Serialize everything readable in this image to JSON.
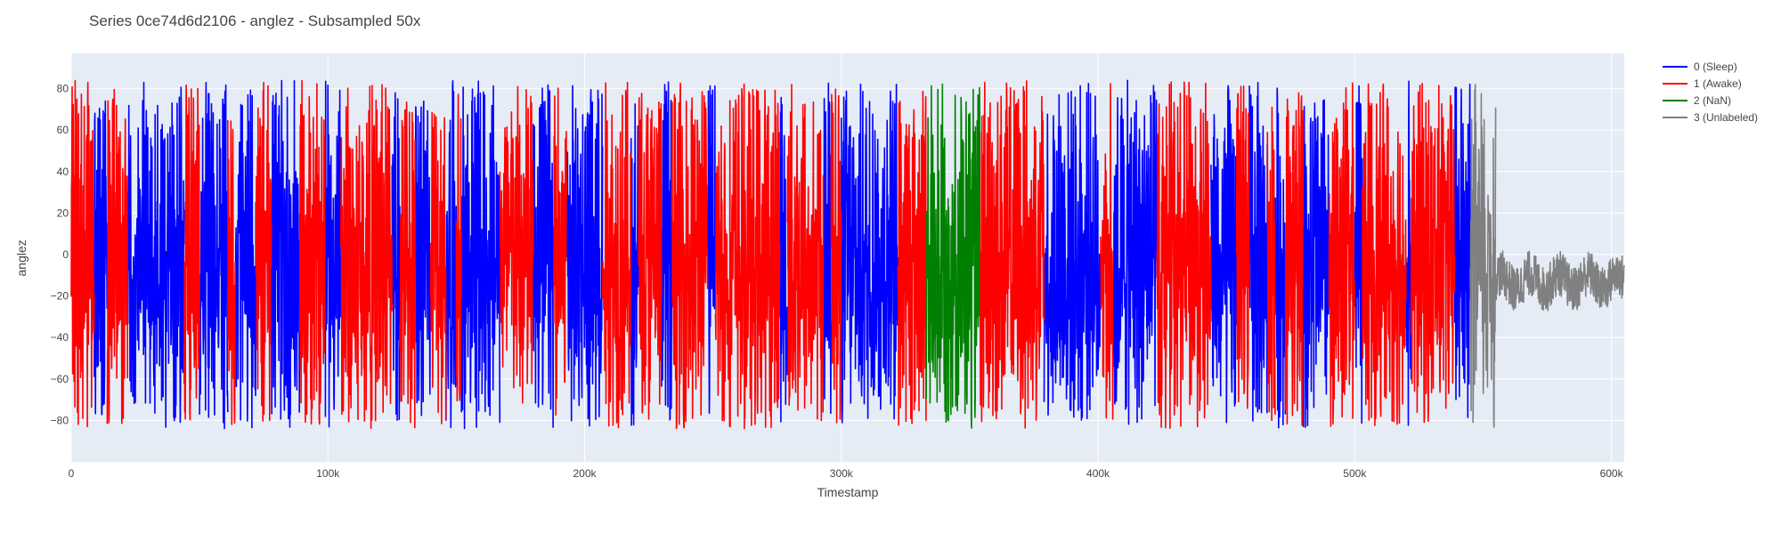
{
  "chart_data": {
    "type": "line",
    "title": "Series 0ce74d6d2106 - anglez - Subsampled 50x",
    "xlabel": "Timestamp",
    "ylabel": "anglez",
    "xlim": [
      0,
      605000
    ],
    "ylim": [
      -100,
      97
    ],
    "x_ticks": [
      {
        "value": 0,
        "label": "0"
      },
      {
        "value": 100000,
        "label": "100k"
      },
      {
        "value": 200000,
        "label": "200k"
      },
      {
        "value": 300000,
        "label": "300k"
      },
      {
        "value": 400000,
        "label": "400k"
      },
      {
        "value": 500000,
        "label": "500k"
      },
      {
        "value": 600000,
        "label": "600k"
      }
    ],
    "y_ticks": [
      {
        "value": -80,
        "label": "−80"
      },
      {
        "value": -60,
        "label": "−60"
      },
      {
        "value": -40,
        "label": "−40"
      },
      {
        "value": -20,
        "label": "−20"
      },
      {
        "value": 0,
        "label": "0"
      },
      {
        "value": 20,
        "label": "20"
      },
      {
        "value": 40,
        "label": "40"
      },
      {
        "value": 60,
        "label": "60"
      },
      {
        "value": 80,
        "label": "80"
      }
    ],
    "grid": true,
    "legend_position": "top-right",
    "series": [
      {
        "name": "0 (Sleep)",
        "color": "#0000ff",
        "style": "high-amplitude",
        "segments": [
          [
            9000,
            14000
          ],
          [
            22000,
            44000
          ],
          [
            50000,
            61000
          ],
          [
            64000,
            72000
          ],
          [
            78000,
            89000
          ],
          [
            99000,
            105000
          ],
          [
            125000,
            128000
          ],
          [
            134000,
            140000
          ],
          [
            146000,
            150000
          ],
          [
            152000,
            167000
          ],
          [
            180000,
            188000
          ],
          [
            193000,
            207000
          ],
          [
            218000,
            221000
          ],
          [
            230000,
            234000
          ],
          [
            248000,
            251000
          ],
          [
            276000,
            279000
          ],
          [
            293000,
            296000
          ],
          [
            300000,
            322000
          ],
          [
            379000,
            401000
          ],
          [
            406000,
            423000
          ],
          [
            444000,
            454000
          ],
          [
            459000,
            466000
          ],
          [
            469000,
            473000
          ],
          [
            480000,
            490000
          ],
          [
            500000,
            503000
          ],
          [
            520000,
            522000
          ],
          [
            539000,
            545000
          ]
        ]
      },
      {
        "name": "1 (Awake)",
        "color": "#ff0000",
        "style": "high-amplitude",
        "segments": [
          [
            0,
            9000
          ],
          [
            14000,
            22000
          ],
          [
            44000,
            50000
          ],
          [
            61000,
            64000
          ],
          [
            72000,
            78000
          ],
          [
            89000,
            99000
          ],
          [
            105000,
            125000
          ],
          [
            128000,
            134000
          ],
          [
            140000,
            146000
          ],
          [
            150000,
            152000
          ],
          [
            167000,
            180000
          ],
          [
            188000,
            193000
          ],
          [
            207000,
            218000
          ],
          [
            221000,
            230000
          ],
          [
            234000,
            248000
          ],
          [
            251000,
            276000
          ],
          [
            279000,
            293000
          ],
          [
            296000,
            300000
          ],
          [
            322000,
            333000
          ],
          [
            354000,
            379000
          ],
          [
            401000,
            406000
          ],
          [
            423000,
            444000
          ],
          [
            454000,
            459000
          ],
          [
            466000,
            469000
          ],
          [
            473000,
            480000
          ],
          [
            490000,
            500000
          ],
          [
            503000,
            520000
          ],
          [
            522000,
            539000
          ]
        ]
      },
      {
        "name": "2 (NaN)",
        "color": "#008000",
        "style": "high-amplitude",
        "segments": [
          [
            333000,
            354000
          ]
        ]
      },
      {
        "name": "3 (Unlabeled)",
        "color": "#808080",
        "style": "mixed",
        "segments": [
          [
            545000,
            555000
          ],
          [
            555000,
            605000
          ]
        ]
      }
    ]
  }
}
